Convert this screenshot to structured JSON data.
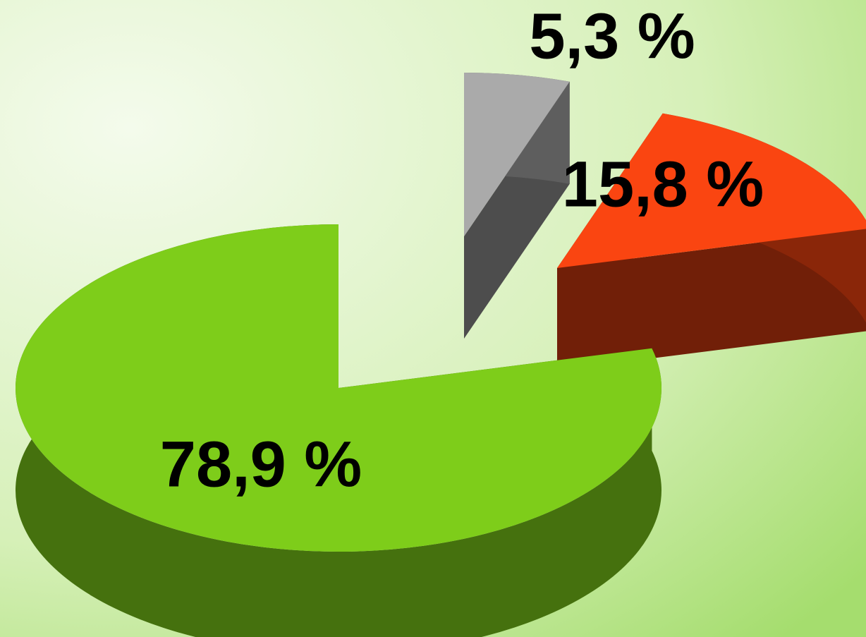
{
  "chart_data": {
    "type": "pie",
    "values": [
      78.9,
      15.8,
      5.3
    ],
    "value_labels": [
      "78,9 %",
      "15,8 %",
      "5,3 %"
    ],
    "colors": [
      "#7ecd1a",
      "#fa4511",
      "#aaaaaa"
    ]
  }
}
